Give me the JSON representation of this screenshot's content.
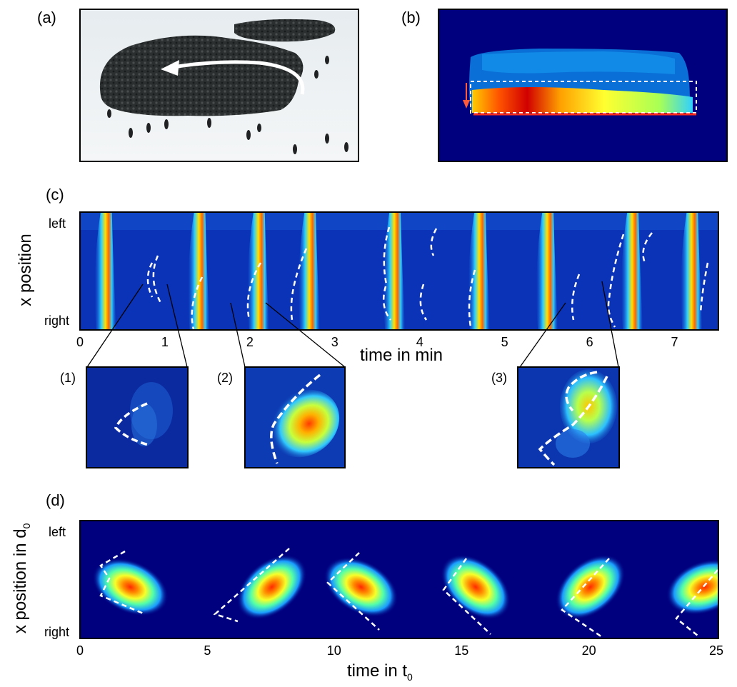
{
  "panels": {
    "a": {
      "label": "(a)"
    },
    "b": {
      "label": "(b)"
    },
    "c": {
      "label": "(c)",
      "ylabel": "x position",
      "xlabel": "time in min",
      "ytick_top": "left",
      "ytick_bottom": "right",
      "xticks": [
        "0",
        "1",
        "2",
        "3",
        "4",
        "5",
        "6",
        "7"
      ]
    },
    "insets": {
      "one": "(1)",
      "two": "(2)",
      "three": "(3)"
    },
    "d": {
      "label": "(d)",
      "ylabel_main": "x position in d",
      "ylabel_sub": "0",
      "xlabel_main": "time in t",
      "xlabel_sub": "0",
      "ytick_top": "left",
      "ytick_bottom": "right",
      "xticks": [
        "0",
        "5",
        "10",
        "15",
        "20",
        "25"
      ]
    }
  },
  "chart_data": [
    {
      "type": "heatmap",
      "panel": "c",
      "xlabel": "time in min",
      "ylabel": "x position",
      "xlim": [
        0,
        7.5
      ],
      "x_ticks": [
        0,
        1,
        2,
        3,
        4,
        5,
        6,
        7
      ],
      "y_tick_labels": [
        "left",
        "right"
      ],
      "wave_times_min": [
        0.3,
        1.4,
        2.1,
        2.7,
        3.7,
        4.7,
        5.5,
        6.5,
        7.2
      ]
    },
    {
      "type": "heatmap",
      "panel": "d",
      "xlabel": "time in t0",
      "ylabel": "x position in d0",
      "xlim": [
        0,
        25
      ],
      "x_ticks": [
        0,
        5,
        10,
        15,
        20,
        25
      ],
      "y_tick_labels": [
        "left",
        "right"
      ],
      "wave_times_t0": [
        1.5,
        7.5,
        11,
        15.5,
        20,
        24.5
      ]
    }
  ],
  "colors": {
    "colormap_low": "#00007f",
    "colormap_high": "#ff0000",
    "dashed_overlay": "#ffffff",
    "arrow_red": "#ff3b1f"
  }
}
